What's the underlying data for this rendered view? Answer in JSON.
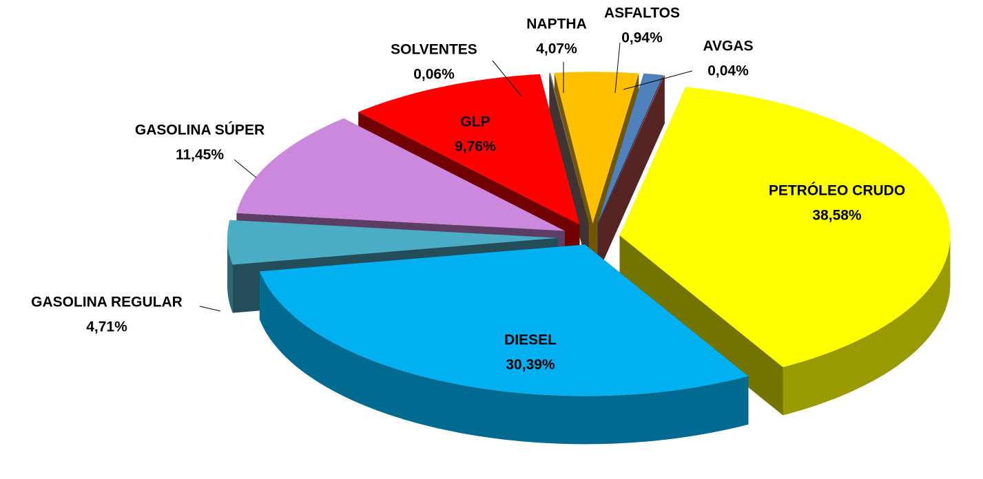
{
  "chart_data": {
    "type": "pie",
    "categories": [
      "ASFALTOS",
      "AVGAS",
      "PETRÓLEO CRUDO",
      "DIESEL",
      "GASOLINA REGULAR",
      "GASOLINA SÚPER",
      "GLP",
      "SOLVENTES",
      "NAPTHA"
    ],
    "values": [
      0.94,
      0.04,
      38.58,
      30.39,
      4.71,
      11.45,
      9.76,
      0.06,
      4.07
    ],
    "value_labels": [
      "0,94%",
      "0,04%",
      "38,58%",
      "30,39%",
      "4,71%",
      "11,45%",
      "9,76%",
      "0,06%",
      "4,07%"
    ],
    "colors": [
      "#4f81bd",
      "#c0504d",
      "#ffff00",
      "#00b0f0",
      "#4bacc6",
      "#cc88dd",
      "#ff0000",
      "#8c7272",
      "#ffc000"
    ]
  }
}
